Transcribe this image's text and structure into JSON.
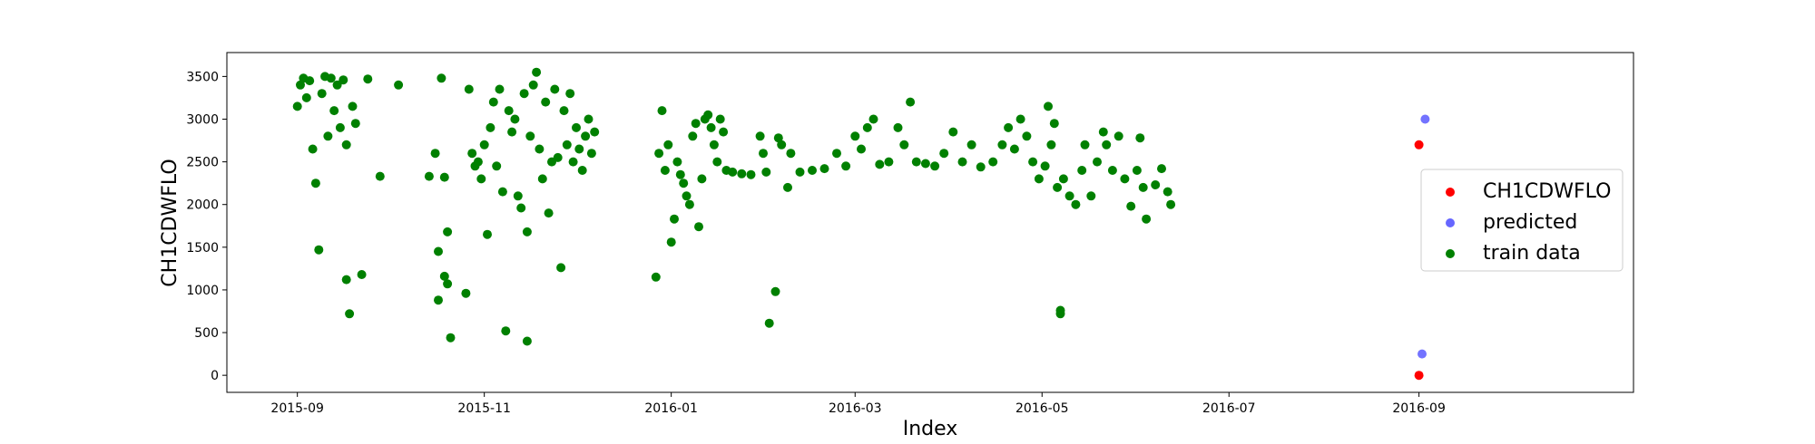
{
  "chart_data": {
    "type": "scatter",
    "xlabel": "Index",
    "ylabel": "CH1CDWFLO",
    "xlim": [
      "2015-08-09",
      "2016-11-10"
    ],
    "ylim": [
      -200,
      3780
    ],
    "x_ticks": [
      "2015-09-01",
      "2015-11-01",
      "2016-01-01",
      "2016-03-01",
      "2016-05-01",
      "2016-07-01",
      "2016-09-01"
    ],
    "x_tick_labels": [
      "2015-09",
      "2015-11",
      "2016-01",
      "2016-03",
      "2016-05",
      "2016-07",
      "2016-09"
    ],
    "y_ticks": [
      0,
      500,
      1000,
      1500,
      2000,
      2500,
      3000,
      3500
    ],
    "grid": false,
    "legend_position": "center-right",
    "legend": [
      "CH1CDWFLO",
      "predicted",
      "train data"
    ],
    "series": [
      {
        "name": "train data",
        "color": "#008000",
        "points": [
          [
            "2015-09-01",
            3150
          ],
          [
            "2015-09-02",
            3400
          ],
          [
            "2015-09-03",
            3480
          ],
          [
            "2015-09-04",
            3250
          ],
          [
            "2015-09-05",
            3450
          ],
          [
            "2015-09-06",
            2650
          ],
          [
            "2015-09-07",
            2250
          ],
          [
            "2015-09-08",
            1470
          ],
          [
            "2015-09-09",
            3300
          ],
          [
            "2015-09-10",
            3500
          ],
          [
            "2015-09-11",
            2800
          ],
          [
            "2015-09-12",
            3480
          ],
          [
            "2015-09-13",
            3100
          ],
          [
            "2015-09-14",
            3400
          ],
          [
            "2015-09-15",
            2900
          ],
          [
            "2015-09-16",
            3460
          ],
          [
            "2015-09-17",
            2700
          ],
          [
            "2015-09-17",
            1120
          ],
          [
            "2015-09-18",
            720
          ],
          [
            "2015-09-19",
            3150
          ],
          [
            "2015-09-20",
            2950
          ],
          [
            "2015-09-22",
            1180
          ],
          [
            "2015-09-24",
            3470
          ],
          [
            "2015-09-28",
            2330
          ],
          [
            "2015-10-04",
            3400
          ],
          [
            "2015-10-14",
            2330
          ],
          [
            "2015-10-16",
            2600
          ],
          [
            "2015-10-17",
            1450
          ],
          [
            "2015-10-17",
            880
          ],
          [
            "2015-10-18",
            3480
          ],
          [
            "2015-10-19",
            2320
          ],
          [
            "2015-10-19",
            1160
          ],
          [
            "2015-10-20",
            1680
          ],
          [
            "2015-10-20",
            1070
          ],
          [
            "2015-10-21",
            440
          ],
          [
            "2015-10-26",
            960
          ],
          [
            "2015-10-27",
            3350
          ],
          [
            "2015-10-28",
            2600
          ],
          [
            "2015-10-29",
            2450
          ],
          [
            "2015-10-30",
            2500
          ],
          [
            "2015-10-31",
            2300
          ],
          [
            "2015-11-01",
            2700
          ],
          [
            "2015-11-02",
            1650
          ],
          [
            "2015-11-03",
            2900
          ],
          [
            "2015-11-04",
            3200
          ],
          [
            "2015-11-05",
            2450
          ],
          [
            "2015-11-06",
            3350
          ],
          [
            "2015-11-07",
            2150
          ],
          [
            "2015-11-08",
            520
          ],
          [
            "2015-11-09",
            3100
          ],
          [
            "2015-11-10",
            2850
          ],
          [
            "2015-11-11",
            3000
          ],
          [
            "2015-11-12",
            2100
          ],
          [
            "2015-11-13",
            1960
          ],
          [
            "2015-11-14",
            3300
          ],
          [
            "2015-11-15",
            400
          ],
          [
            "2015-11-15",
            1680
          ],
          [
            "2015-11-16",
            2800
          ],
          [
            "2015-11-17",
            3400
          ],
          [
            "2015-11-18",
            3550
          ],
          [
            "2015-11-19",
            2650
          ],
          [
            "2015-11-20",
            2300
          ],
          [
            "2015-11-21",
            3200
          ],
          [
            "2015-11-22",
            1900
          ],
          [
            "2015-11-23",
            2500
          ],
          [
            "2015-11-24",
            3350
          ],
          [
            "2015-11-25",
            2550
          ],
          [
            "2015-11-26",
            1260
          ],
          [
            "2015-11-27",
            3100
          ],
          [
            "2015-11-28",
            2700
          ],
          [
            "2015-11-29",
            3300
          ],
          [
            "2015-11-30",
            2500
          ],
          [
            "2015-12-01",
            2900
          ],
          [
            "2015-12-02",
            2650
          ],
          [
            "2015-12-03",
            2400
          ],
          [
            "2015-12-04",
            2800
          ],
          [
            "2015-12-05",
            3000
          ],
          [
            "2015-12-06",
            2600
          ],
          [
            "2015-12-07",
            2850
          ],
          [
            "2015-12-27",
            1150
          ],
          [
            "2015-12-28",
            2600
          ],
          [
            "2015-12-29",
            3100
          ],
          [
            "2015-12-30",
            2400
          ],
          [
            "2015-12-31",
            2700
          ],
          [
            "2016-01-01",
            1560
          ],
          [
            "2016-01-02",
            1830
          ],
          [
            "2016-01-03",
            2500
          ],
          [
            "2016-01-04",
            2350
          ],
          [
            "2016-01-05",
            2250
          ],
          [
            "2016-01-06",
            2100
          ],
          [
            "2016-01-07",
            2000
          ],
          [
            "2016-01-08",
            2800
          ],
          [
            "2016-01-09",
            2950
          ],
          [
            "2016-01-10",
            1740
          ],
          [
            "2016-01-11",
            2300
          ],
          [
            "2016-01-12",
            3000
          ],
          [
            "2016-01-13",
            3050
          ],
          [
            "2016-01-14",
            2900
          ],
          [
            "2016-01-15",
            2700
          ],
          [
            "2016-01-16",
            2500
          ],
          [
            "2016-01-17",
            3000
          ],
          [
            "2016-01-18",
            2850
          ],
          [
            "2016-01-19",
            2400
          ],
          [
            "2016-01-21",
            2380
          ],
          [
            "2016-01-24",
            2360
          ],
          [
            "2016-01-27",
            2350
          ],
          [
            "2016-01-30",
            2800
          ],
          [
            "2016-01-31",
            2600
          ],
          [
            "2016-02-01",
            2380
          ],
          [
            "2016-02-02",
            610
          ],
          [
            "2016-02-04",
            980
          ],
          [
            "2016-02-05",
            2780
          ],
          [
            "2016-02-06",
            2700
          ],
          [
            "2016-02-08",
            2200
          ],
          [
            "2016-02-09",
            2600
          ],
          [
            "2016-02-12",
            2380
          ],
          [
            "2016-02-16",
            2400
          ],
          [
            "2016-02-20",
            2420
          ],
          [
            "2016-02-24",
            2600
          ],
          [
            "2016-02-27",
            2450
          ],
          [
            "2016-03-01",
            2800
          ],
          [
            "2016-03-03",
            2650
          ],
          [
            "2016-03-05",
            2900
          ],
          [
            "2016-03-07",
            3000
          ],
          [
            "2016-03-09",
            2470
          ],
          [
            "2016-03-12",
            2500
          ],
          [
            "2016-03-15",
            2900
          ],
          [
            "2016-03-17",
            2700
          ],
          [
            "2016-03-19",
            3200
          ],
          [
            "2016-03-21",
            2500
          ],
          [
            "2016-03-24",
            2480
          ],
          [
            "2016-03-27",
            2450
          ],
          [
            "2016-03-30",
            2600
          ],
          [
            "2016-04-02",
            2850
          ],
          [
            "2016-04-05",
            2500
          ],
          [
            "2016-04-08",
            2700
          ],
          [
            "2016-04-11",
            2440
          ],
          [
            "2016-04-15",
            2500
          ],
          [
            "2016-04-18",
            2700
          ],
          [
            "2016-04-20",
            2900
          ],
          [
            "2016-04-22",
            2650
          ],
          [
            "2016-04-24",
            3000
          ],
          [
            "2016-04-26",
            2800
          ],
          [
            "2016-04-28",
            2500
          ],
          [
            "2016-04-30",
            2300
          ],
          [
            "2016-05-02",
            2450
          ],
          [
            "2016-05-03",
            3150
          ],
          [
            "2016-05-04",
            2700
          ],
          [
            "2016-05-05",
            2950
          ],
          [
            "2016-05-06",
            2200
          ],
          [
            "2016-05-07",
            760
          ],
          [
            "2016-05-07",
            720
          ],
          [
            "2016-05-08",
            2300
          ],
          [
            "2016-05-10",
            2100
          ],
          [
            "2016-05-12",
            2000
          ],
          [
            "2016-05-14",
            2400
          ],
          [
            "2016-05-15",
            2700
          ],
          [
            "2016-05-17",
            2100
          ],
          [
            "2016-05-19",
            2500
          ],
          [
            "2016-05-21",
            2850
          ],
          [
            "2016-05-22",
            2700
          ],
          [
            "2016-05-24",
            2400
          ],
          [
            "2016-05-26",
            2800
          ],
          [
            "2016-05-28",
            2300
          ],
          [
            "2016-05-30",
            1980
          ],
          [
            "2016-06-01",
            2400
          ],
          [
            "2016-06-02",
            2780
          ],
          [
            "2016-06-03",
            2200
          ],
          [
            "2016-06-04",
            1830
          ],
          [
            "2016-06-07",
            2230
          ],
          [
            "2016-06-09",
            2420
          ],
          [
            "2016-06-11",
            2150
          ],
          [
            "2016-06-12",
            2000
          ]
        ]
      },
      {
        "name": "CH1CDWFLO",
        "color": "#ff0000",
        "points": [
          [
            "2016-09-01",
            0
          ],
          [
            "2016-09-01",
            2700
          ]
        ]
      },
      {
        "name": "predicted",
        "color": "#0000ff",
        "points": [
          [
            "2016-09-02",
            250
          ],
          [
            "2016-09-03",
            3000
          ]
        ]
      }
    ]
  }
}
